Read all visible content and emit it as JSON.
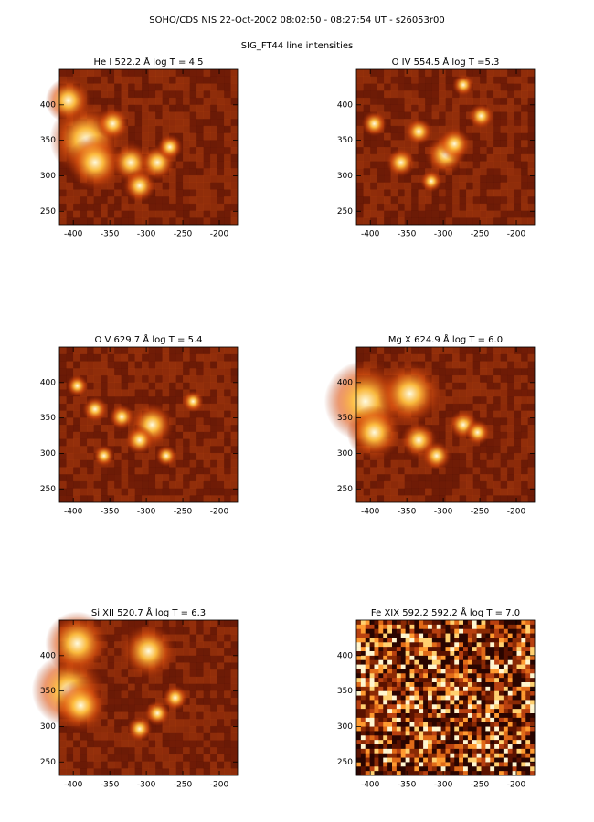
{
  "header": {
    "title": "SOHO/CDS NIS  22-Oct-2002 08:02:50 - 08:27:54 UT - s26053r00",
    "subtitle": "SIG_FT44 line intensities"
  },
  "panels": [
    {
      "title": "He I  522.2 Å log T = 4.5"
    },
    {
      "title": "O IV  554.5 Å log T =5.3"
    },
    {
      "title": "O V  629.7 Å log T = 5.4"
    },
    {
      "title": "Mg X  624.9 Å log T = 6.0"
    },
    {
      "title": "Si XII  520.7 Å log T = 6.3"
    },
    {
      "title": "Fe XIX 592.2  592.2 Å log T = 7.0"
    }
  ],
  "xlim": [
    -419,
    -175
  ],
  "ylim": [
    231,
    450
  ],
  "xticks": [
    -400,
    -350,
    -300,
    -250,
    -200
  ],
  "yticks": [
    250,
    300,
    350,
    400
  ]
}
